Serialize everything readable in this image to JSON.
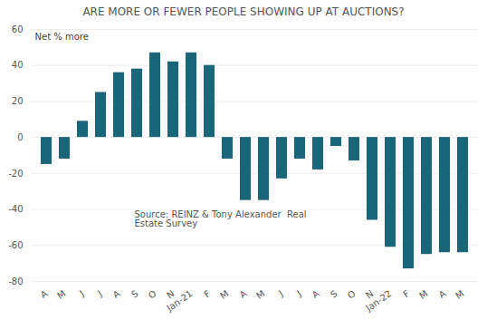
{
  "chart_data": {
    "type": "bar",
    "title": "ARE MORE OR FEWER PEOPLE SHOWING UP AT AUCTIONS?",
    "annotations": [
      "Net % more",
      "Source: REINZ & Tony Alexander  Real\nEstate Survey"
    ],
    "categories": [
      "A",
      "M",
      "J",
      "J",
      "A",
      "S",
      "O",
      "N",
      "Jan-21",
      "F",
      "M",
      "A",
      "M",
      "J",
      "J",
      "A",
      "S",
      "O",
      "N",
      "Jan-22",
      "F",
      "M",
      "A",
      "M"
    ],
    "values": [
      -15,
      -12,
      9,
      25,
      36,
      38,
      47,
      42,
      47,
      40,
      -12,
      -35,
      -35,
      -23,
      -12,
      -18,
      -5,
      -13,
      -46,
      -61,
      -73,
      -65,
      -64,
      -64
    ],
    "color": "#1a6678",
    "ylim": [
      -80,
      60
    ],
    "yticks": [
      -80,
      -60,
      -40,
      -20,
      0,
      20,
      40,
      60
    ],
    "grid": true
  }
}
